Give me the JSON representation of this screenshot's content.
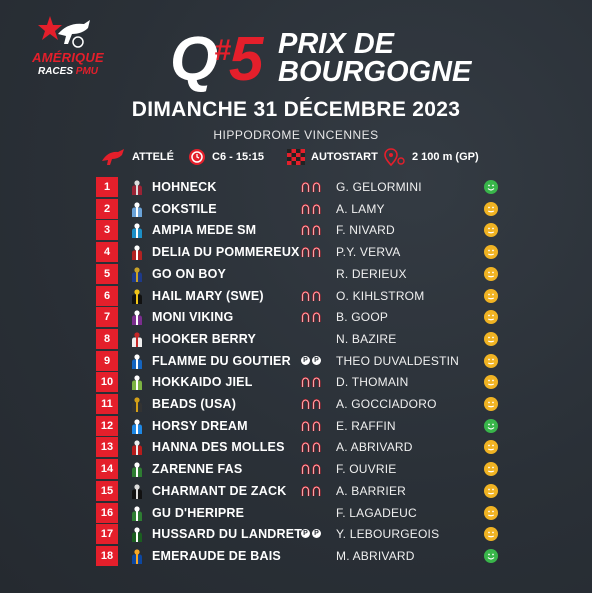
{
  "brand": {
    "line1": "AMÉRIQUE",
    "line2_a": "RACES",
    "line2_b": "PMU",
    "accent": "#e41f2b"
  },
  "race": {
    "q": "Q",
    "hash": "#",
    "number": "5",
    "title_line1": "PRIX DE",
    "title_line2": "BOURGOGNE"
  },
  "date": "DIMANCHE 31 DÉCEMBRE 2023",
  "venue": "HIPPODROME VINCENNES",
  "info": {
    "discipline": "ATTELÉ",
    "race_code": "C6 - 15:15",
    "start": "AUTOSTART",
    "distance": "2 100 m (GP)"
  },
  "runners": [
    {
      "num": "1",
      "name": "HOHNECK",
      "shoes": "hh",
      "driver": "G. GELORMINI",
      "mood": "green",
      "silk": [
        "#9b2335",
        "#ddd"
      ]
    },
    {
      "num": "2",
      "name": "COKSTILE",
      "shoes": "hh",
      "driver": "A. LAMY",
      "mood": "yellow",
      "silk": [
        "#6aa3d8",
        "#fff"
      ]
    },
    {
      "num": "3",
      "name": "AMPIA MEDE SM",
      "shoes": "hh",
      "driver": "F. NIVARD",
      "mood": "yellow",
      "silk": [
        "#1c8fc7",
        "#fff"
      ]
    },
    {
      "num": "4",
      "name": "DELIA DU POMMEREUX",
      "shoes": "hh",
      "driver": "P.Y. VERVA",
      "mood": "yellow",
      "silk": [
        "#b22222",
        "#fff"
      ]
    },
    {
      "num": "5",
      "name": "GO ON BOY",
      "shoes": "",
      "driver": "R. DERIEUX",
      "mood": "yellow",
      "silk": [
        "#1e3a8a",
        "#c9a227"
      ]
    },
    {
      "num": "6",
      "name": "HAIL MARY (SWE)",
      "shoes": "hh",
      "driver": "O. KIHLSTROM",
      "mood": "yellow",
      "silk": [
        "#111",
        "#f0c419"
      ]
    },
    {
      "num": "7",
      "name": "MONI VIKING",
      "shoes": "hh",
      "driver": "B. GOOP",
      "mood": "yellow",
      "silk": [
        "#7b2d8e",
        "#fff"
      ]
    },
    {
      "num": "8",
      "name": "HOOKER BERRY",
      "shoes": "",
      "driver": "N. BAZIRE",
      "mood": "yellow",
      "silk": [
        "#eee",
        "#c62828"
      ]
    },
    {
      "num": "9",
      "name": "FLAMME DU GOUTIER",
      "shoes": "pp",
      "driver": "THEO DUVALDESTIN",
      "mood": "yellow",
      "silk": [
        "#1565c0",
        "#fff"
      ]
    },
    {
      "num": "10",
      "name": "HOKKAIDO JIEL",
      "shoes": "hh",
      "driver": "D. THOMAIN",
      "mood": "yellow",
      "silk": [
        "#7cb342",
        "#fff"
      ]
    },
    {
      "num": "11",
      "name": "BEADS (USA)",
      "shoes": "hh",
      "driver": "A. GOCCIADORO",
      "mood": "yellow",
      "silk": [
        "#333",
        "#d4a017"
      ]
    },
    {
      "num": "12",
      "name": "HORSY DREAM",
      "shoes": "hh",
      "driver": "E. RAFFIN",
      "mood": "green",
      "silk": [
        "#1e88e5",
        "#fff"
      ]
    },
    {
      "num": "13",
      "name": "HANNA DES MOLLES",
      "shoes": "hh",
      "driver": "A. ABRIVARD",
      "mood": "yellow",
      "silk": [
        "#b71c1c",
        "#eee"
      ]
    },
    {
      "num": "14",
      "name": "ZARENNE FAS",
      "shoes": "hh",
      "driver": "F. OUVRIE",
      "mood": "yellow",
      "silk": [
        "#2e7d32",
        "#fff"
      ]
    },
    {
      "num": "15",
      "name": "CHARMANT DE ZACK",
      "shoes": "hh",
      "driver": "A. BARRIER",
      "mood": "yellow",
      "silk": [
        "#111",
        "#ddd"
      ]
    },
    {
      "num": "16",
      "name": "GU D'HERIPRE",
      "shoes": "",
      "driver": "F. LAGADEUC",
      "mood": "yellow",
      "silk": [
        "#2e7d32",
        "#fff"
      ]
    },
    {
      "num": "17",
      "name": "HUSSARD DU LANDRET",
      "shoes": "pp",
      "driver": "Y. LEBOURGEOIS",
      "mood": "yellow",
      "silk": [
        "#1b5e20",
        "#fff"
      ]
    },
    {
      "num": "18",
      "name": "EMERAUDE DE BAIS",
      "shoes": "",
      "driver": "M. ABRIVARD",
      "mood": "green",
      "silk": [
        "#0d47a1",
        "#f9a825"
      ]
    }
  ]
}
